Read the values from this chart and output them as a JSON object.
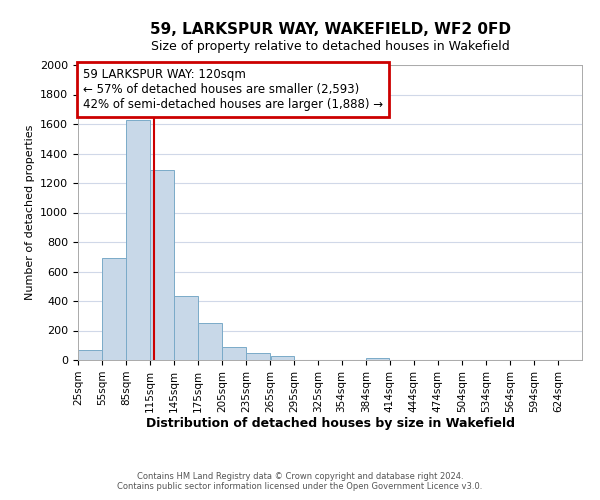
{
  "title": "59, LARKSPUR WAY, WAKEFIELD, WF2 0FD",
  "subtitle": "Size of property relative to detached houses in Wakefield",
  "xlabel": "Distribution of detached houses by size in Wakefield",
  "ylabel": "Number of detached properties",
  "bar_color": "#c8d8e8",
  "bar_edge_color": "#7aaac8",
  "bar_left_edges": [
    25,
    55,
    85,
    115,
    145,
    175,
    205,
    235,
    265,
    295,
    325,
    354,
    384,
    414,
    444,
    474,
    504,
    534,
    564,
    594
  ],
  "bar_widths": [
    30,
    30,
    30,
    30,
    30,
    30,
    30,
    30,
    30,
    30,
    29,
    30,
    30,
    30,
    30,
    30,
    30,
    30,
    30,
    30
  ],
  "bar_heights": [
    65,
    690,
    1630,
    1285,
    435,
    250,
    90,
    50,
    30,
    0,
    0,
    0,
    15,
    0,
    0,
    0,
    0,
    0,
    0,
    0
  ],
  "tick_labels": [
    "25sqm",
    "55sqm",
    "85sqm",
    "115sqm",
    "145sqm",
    "175sqm",
    "205sqm",
    "235sqm",
    "265sqm",
    "295sqm",
    "325sqm",
    "354sqm",
    "384sqm",
    "414sqm",
    "444sqm",
    "474sqm",
    "504sqm",
    "534sqm",
    "564sqm",
    "594sqm",
    "624sqm"
  ],
  "tick_positions": [
    25,
    55,
    85,
    115,
    145,
    175,
    205,
    235,
    265,
    295,
    325,
    354,
    384,
    414,
    444,
    474,
    504,
    534,
    564,
    594,
    624
  ],
  "ylim": [
    0,
    2000
  ],
  "yticks": [
    0,
    200,
    400,
    600,
    800,
    1000,
    1200,
    1400,
    1600,
    1800,
    2000
  ],
  "xlim": [
    25,
    654
  ],
  "property_line_x": 120,
  "property_line_color": "#cc0000",
  "annotation_line1": "59 LARKSPUR WAY: 120sqm",
  "annotation_line2": "← 57% of detached houses are smaller (2,593)",
  "annotation_line3": "42% of semi-detached houses are larger (1,888) →",
  "footer_line1": "Contains HM Land Registry data © Crown copyright and database right 2024.",
  "footer_line2": "Contains public sector information licensed under the Open Government Licence v3.0.",
  "background_color": "#ffffff",
  "grid_color": "#d0d8e8",
  "annotation_box_color": "#cc0000",
  "annotation_font_size": 8.5,
  "title_fontsize": 11,
  "subtitle_fontsize": 9,
  "ylabel_fontsize": 8,
  "xlabel_fontsize": 9,
  "footer_fontsize": 6
}
